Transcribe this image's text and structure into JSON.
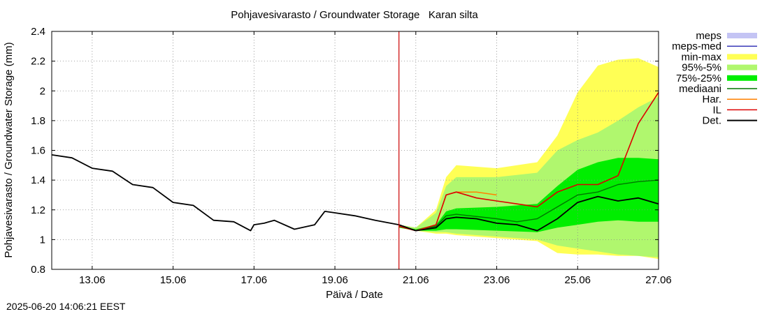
{
  "timestamp": "2025-06-20 14:06:21 EEST",
  "chart_data": {
    "type": "line",
    "title": "Pohjavesivarasto / Groundwater Storage   Karan silta",
    "xlabel": "Päivä / Date",
    "ylabel": "Pohjavesivarasto / Groundwater Storage (mm)",
    "x_unit": "date (June 2025)",
    "xlim": [
      "2025-06-12",
      "2025-06-27"
    ],
    "ylim": [
      0.8,
      2.4
    ],
    "x_ticks": [
      {
        "x": "2025-06-13",
        "label": "13.06"
      },
      {
        "x": "2025-06-15",
        "label": "15.06"
      },
      {
        "x": "2025-06-17",
        "label": "17.06"
      },
      {
        "x": "2025-06-19",
        "label": "19.06"
      },
      {
        "x": "2025-06-21",
        "label": "21.06"
      },
      {
        "x": "2025-06-23",
        "label": "23.06"
      },
      {
        "x": "2025-06-25",
        "label": "25.06"
      },
      {
        "x": "2025-06-27",
        "label": "27.06"
      }
    ],
    "y_ticks": [
      {
        "y": 0.8,
        "label": "0.8"
      },
      {
        "y": 1.0,
        "label": "1"
      },
      {
        "y": 1.2,
        "label": "1.2"
      },
      {
        "y": 1.4,
        "label": "1.4"
      },
      {
        "y": 1.6,
        "label": "1.6"
      },
      {
        "y": 1.8,
        "label": "1.8"
      },
      {
        "y": 2.0,
        "label": "2"
      },
      {
        "y": 2.2,
        "label": "2.2"
      },
      {
        "y": 2.4,
        "label": "2.4"
      }
    ],
    "grid": true,
    "legend_position": "right",
    "forecast_start": "2025-06-20T14:00",
    "colors": {
      "meps": "#c4c4f4",
      "meps_med": "#3a3ab8",
      "minmax": "#ffff55",
      "p95_5": "#b0f76e",
      "p75_25": "#00ee00",
      "median": "#007700",
      "har": "#ff8000",
      "il": "#dd0000",
      "det": "#000000",
      "forecast_line": "#cc0000"
    },
    "legend": [
      {
        "key": "meps",
        "label": "meps",
        "style": "band"
      },
      {
        "key": "meps_med",
        "label": "meps-med",
        "style": "line"
      },
      {
        "key": "minmax",
        "label": "min-max",
        "style": "band"
      },
      {
        "key": "p95_5",
        "label": "95%-5%",
        "style": "band"
      },
      {
        "key": "p75_25",
        "label": "75%-25%",
        "style": "band"
      },
      {
        "key": "median",
        "label": "mediaani",
        "style": "line"
      },
      {
        "key": "har",
        "label": "Har.",
        "style": "line"
      },
      {
        "key": "il",
        "label": "IL",
        "style": "line"
      },
      {
        "key": "det",
        "label": "Det.",
        "style": "line"
      }
    ],
    "bands": [
      {
        "key": "minmax",
        "name": "min-max",
        "x": [
          "2025-06-20T14:00",
          "2025-06-21T00:00",
          "2025-06-21T12:00",
          "2025-06-21T18:00",
          "2025-06-22T00:00",
          "2025-06-23T00:00",
          "2025-06-24T00:00",
          "2025-06-24T12:00",
          "2025-06-25T00:00",
          "2025-06-25T12:00",
          "2025-06-26T00:00",
          "2025-06-26T12:00",
          "2025-06-27T00:00"
        ],
        "upper": [
          1.1,
          1.08,
          1.2,
          1.42,
          1.5,
          1.48,
          1.52,
          1.7,
          1.99,
          2.17,
          2.21,
          2.22,
          2.16
        ],
        "lower": [
          1.08,
          1.06,
          1.04,
          1.04,
          1.03,
          1.01,
          0.99,
          0.91,
          0.9,
          0.9,
          0.89,
          0.89,
          0.87
        ]
      },
      {
        "key": "p95_5",
        "name": "95%-5%",
        "x": [
          "2025-06-20T14:00",
          "2025-06-21T00:00",
          "2025-06-21T12:00",
          "2025-06-21T18:00",
          "2025-06-22T00:00",
          "2025-06-23T00:00",
          "2025-06-24T00:00",
          "2025-06-24T12:00",
          "2025-06-25T00:00",
          "2025-06-25T12:00",
          "2025-06-26T00:00",
          "2025-06-26T12:00",
          "2025-06-27T00:00"
        ],
        "upper": [
          1.1,
          1.08,
          1.18,
          1.36,
          1.42,
          1.42,
          1.45,
          1.6,
          1.67,
          1.72,
          1.8,
          1.89,
          1.96
        ],
        "lower": [
          1.08,
          1.06,
          1.05,
          1.05,
          1.04,
          1.02,
          1.0,
          0.96,
          0.94,
          0.92,
          0.9,
          0.89,
          0.88
        ]
      },
      {
        "key": "p75_25",
        "name": "75%-25%",
        "x": [
          "2025-06-20T14:00",
          "2025-06-21T00:00",
          "2025-06-21T12:00",
          "2025-06-21T18:00",
          "2025-06-22T00:00",
          "2025-06-23T00:00",
          "2025-06-24T00:00",
          "2025-06-24T12:00",
          "2025-06-25T00:00",
          "2025-06-25T12:00",
          "2025-06-26T00:00",
          "2025-06-26T12:00",
          "2025-06-27T00:00"
        ],
        "upper": [
          1.09,
          1.07,
          1.1,
          1.19,
          1.21,
          1.22,
          1.24,
          1.36,
          1.47,
          1.52,
          1.55,
          1.55,
          1.54
        ],
        "lower": [
          1.08,
          1.06,
          1.06,
          1.07,
          1.07,
          1.06,
          1.05,
          1.08,
          1.1,
          1.12,
          1.13,
          1.12,
          1.12
        ]
      }
    ],
    "series": [
      {
        "key": "median",
        "name": "mediaani",
        "x": [
          "2025-06-20T14:00",
          "2025-06-21T00:00",
          "2025-06-21T12:00",
          "2025-06-21T18:00",
          "2025-06-22T00:00",
          "2025-06-23T00:00",
          "2025-06-23T12:00",
          "2025-06-24T00:00",
          "2025-06-24T12:00",
          "2025-06-25T00:00",
          "2025-06-25T12:00",
          "2025-06-26T00:00",
          "2025-06-26T12:00",
          "2025-06-27T00:00"
        ],
        "y": [
          1.09,
          1.06,
          1.09,
          1.16,
          1.17,
          1.14,
          1.12,
          1.14,
          1.22,
          1.3,
          1.32,
          1.37,
          1.39,
          1.4
        ]
      },
      {
        "key": "har",
        "name": "Har.",
        "x": [
          "2025-06-20T14:00",
          "2025-06-21T00:00",
          "2025-06-21T12:00",
          "2025-06-21T18:00",
          "2025-06-22T00:00",
          "2025-06-22T12:00",
          "2025-06-23T00:00"
        ],
        "y": [
          1.09,
          1.06,
          1.1,
          1.3,
          1.32,
          1.32,
          1.3
        ]
      },
      {
        "key": "il",
        "name": "IL",
        "x": [
          "2025-06-20T14:00",
          "2025-06-21T00:00",
          "2025-06-21T12:00",
          "2025-06-21T18:00",
          "2025-06-22T00:00",
          "2025-06-22T12:00",
          "2025-06-23T00:00",
          "2025-06-23T12:00",
          "2025-06-24T00:00",
          "2025-06-24T12:00",
          "2025-06-25T00:00",
          "2025-06-25T12:00",
          "2025-06-26T00:00",
          "2025-06-26T12:00",
          "2025-06-27T00:00"
        ],
        "y": [
          1.09,
          1.06,
          1.1,
          1.3,
          1.32,
          1.28,
          1.26,
          1.24,
          1.22,
          1.32,
          1.37,
          1.37,
          1.43,
          1.78,
          1.99
        ]
      },
      {
        "key": "det",
        "name": "Det.",
        "x": [
          "2025-06-12T00:00",
          "2025-06-12T12:00",
          "2025-06-13T00:00",
          "2025-06-13T12:00",
          "2025-06-14T00:00",
          "2025-06-14T12:00",
          "2025-06-15T00:00",
          "2025-06-15T12:00",
          "2025-06-16T00:00",
          "2025-06-16T12:00",
          "2025-06-16T22:00",
          "2025-06-17T00:00",
          "2025-06-17T06:00",
          "2025-06-17T12:00",
          "2025-06-18T00:00",
          "2025-06-18T12:00",
          "2025-06-18T18:00",
          "2025-06-19T00:00",
          "2025-06-19T12:00",
          "2025-06-20T00:00",
          "2025-06-20T14:00",
          "2025-06-21T00:00",
          "2025-06-21T12:00",
          "2025-06-21T18:00",
          "2025-06-22T00:00",
          "2025-06-22T12:00",
          "2025-06-23T00:00",
          "2025-06-23T12:00",
          "2025-06-24T00:00",
          "2025-06-24T12:00",
          "2025-06-25T00:00",
          "2025-06-25T12:00",
          "2025-06-26T00:00",
          "2025-06-26T12:00",
          "2025-06-27T00:00"
        ],
        "y": [
          1.57,
          1.55,
          1.48,
          1.46,
          1.37,
          1.35,
          1.25,
          1.23,
          1.13,
          1.12,
          1.06,
          1.1,
          1.11,
          1.13,
          1.07,
          1.1,
          1.19,
          1.18,
          1.16,
          1.13,
          1.1,
          1.06,
          1.08,
          1.14,
          1.15,
          1.14,
          1.11,
          1.1,
          1.06,
          1.14,
          1.25,
          1.29,
          1.26,
          1.28,
          1.24
        ]
      }
    ]
  }
}
